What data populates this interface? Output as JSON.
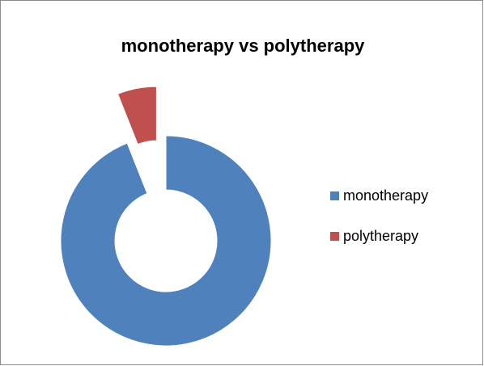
{
  "chart_data": {
    "type": "donut",
    "title": "monotherapy vs polytherapy",
    "categories": [
      "monotherapy",
      "polytherapy"
    ],
    "values": [
      94,
      6
    ],
    "colors": [
      "#4f81bd",
      "#c0504d"
    ],
    "legend": "right"
  }
}
